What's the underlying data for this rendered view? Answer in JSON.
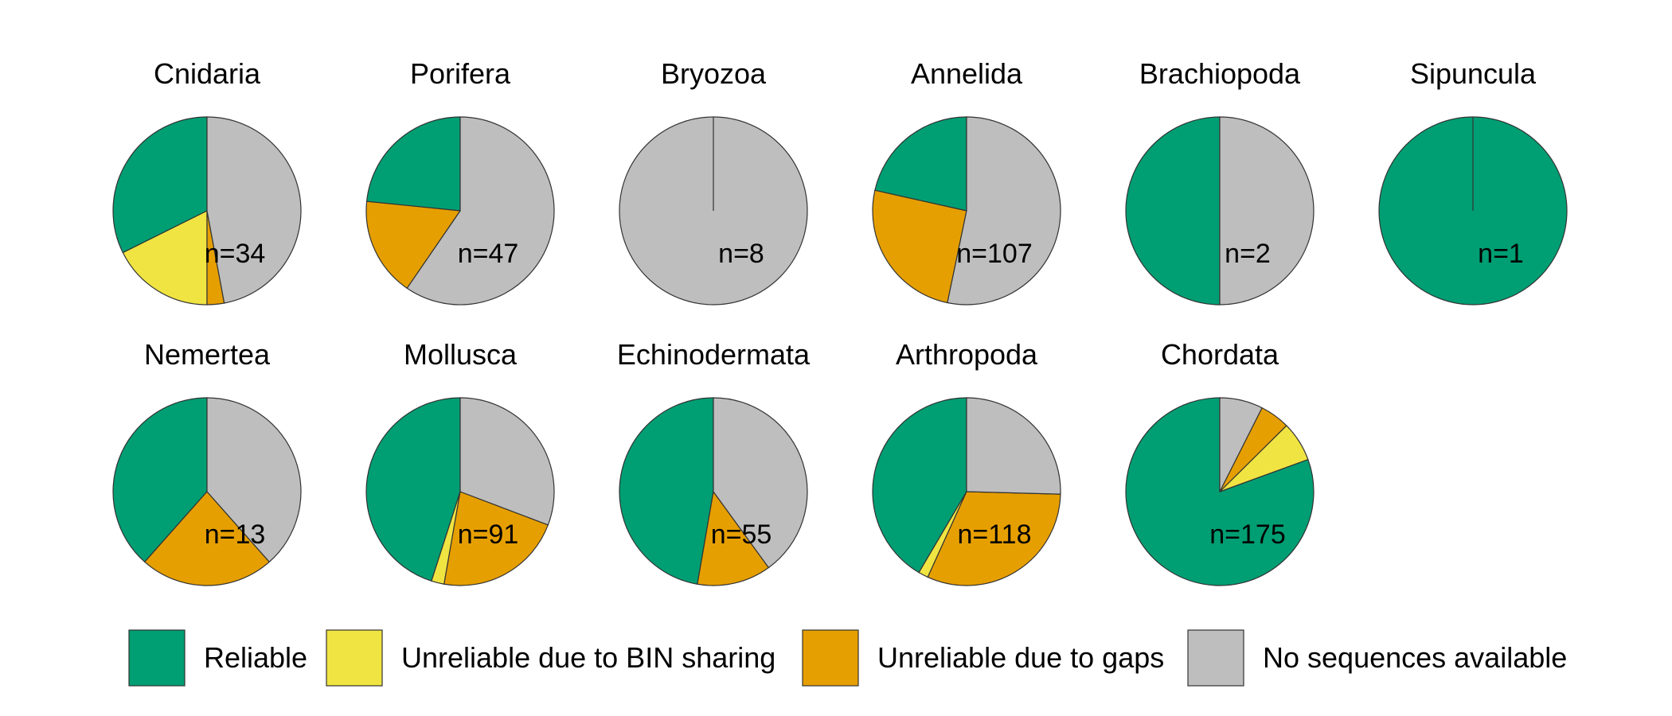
{
  "chart_data": {
    "type": "pie",
    "categories": [
      "Reliable",
      "Unreliable due to BIN sharing",
      "Unreliable due to gaps",
      "No sequences available"
    ],
    "colors": {
      "Reliable": "#009E73",
      "Unreliable due to BIN sharing": "#F0E442",
      "Unreliable due to gaps": "#E69F00",
      "No sequences available": "#BEBEBE"
    },
    "legend": {
      "position": "bottom",
      "entries": [
        "Reliable",
        "Unreliable due to BIN sharing",
        "Unreliable due to gaps",
        "No sequences available"
      ]
    },
    "pies": [
      {
        "title": "Cnidaria",
        "n_label": "n=34",
        "values": [
          11,
          6,
          1,
          16
        ]
      },
      {
        "title": "Porifera",
        "n_label": "n=47",
        "values": [
          11,
          0,
          8,
          28
        ]
      },
      {
        "title": "Bryozoa",
        "n_label": "n=8",
        "values": [
          0,
          0,
          0,
          8
        ]
      },
      {
        "title": "Annelida",
        "n_label": "n=107",
        "values": [
          23,
          0,
          27,
          57
        ]
      },
      {
        "title": "Brachiopoda",
        "n_label": "n=2",
        "values": [
          1,
          0,
          0,
          1
        ]
      },
      {
        "title": "Sipuncula",
        "n_label": "n=1",
        "values": [
          1,
          0,
          0,
          0
        ]
      },
      {
        "title": "Nemertea",
        "n_label": "n=13",
        "values": [
          5,
          0,
          3,
          5
        ]
      },
      {
        "title": "Mollusca",
        "n_label": "n=91",
        "values": [
          41,
          2,
          20,
          28
        ]
      },
      {
        "title": "Echinodermata",
        "n_label": "n=55",
        "values": [
          26,
          0,
          7,
          22
        ]
      },
      {
        "title": "Arthropoda",
        "n_label": "n=118",
        "values": [
          49,
          2,
          37,
          30
        ]
      },
      {
        "title": "Chordata",
        "n_label": "n=175",
        "values": [
          141,
          12,
          9,
          13
        ]
      }
    ]
  }
}
